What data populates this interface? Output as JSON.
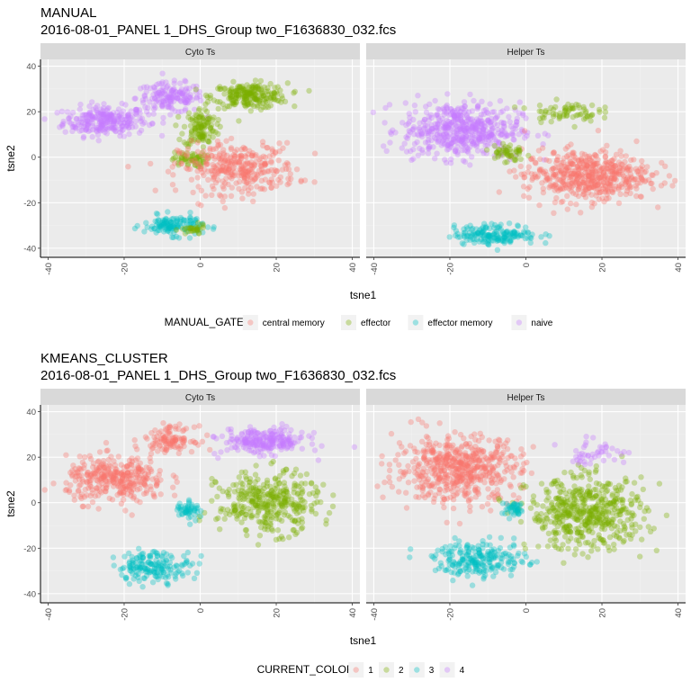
{
  "plots": [
    {
      "title_line1": "MANUAL",
      "title_line2": "2016-08-01_PANEL 1_DHS_Group two_F1636830_032.fcs",
      "legend_title": "MANUAL_GATE",
      "panels": [
        {
          "strip": "Cyto Ts",
          "clusters": [
            {
              "series": "naive",
              "center": [
                -25,
                16
              ],
              "spread": [
                10,
                6
              ],
              "n": 260
            },
            {
              "series": "naive",
              "center": [
                -8,
                26
              ],
              "spread": [
                8,
                6
              ],
              "n": 160
            },
            {
              "series": "effector",
              "center": [
                13,
                27
              ],
              "spread": [
                9,
                5
              ],
              "n": 220
            },
            {
              "series": "effector",
              "center": [
                0,
                13
              ],
              "spread": [
                4,
                8
              ],
              "n": 120
            },
            {
              "series": "effector",
              "center": [
                -3,
                -1
              ],
              "spread": [
                4,
                3
              ],
              "n": 60
            },
            {
              "series": "central memory",
              "center": [
                10,
                -5
              ],
              "spread": [
                14,
                10
              ],
              "n": 330
            },
            {
              "series": "effector memory",
              "center": [
                -7,
                -30
              ],
              "spread": [
                7,
                4
              ],
              "n": 130
            },
            {
              "series": "effector",
              "center": [
                -2,
                -32
              ],
              "spread": [
                3,
                2
              ],
              "n": 30
            }
          ]
        },
        {
          "strip": "Helper Ts",
          "clusters": [
            {
              "series": "naive",
              "center": [
                -17,
                12
              ],
              "spread": [
                14,
                11
              ],
              "n": 520
            },
            {
              "series": "central memory",
              "center": [
                16,
                -8
              ],
              "spread": [
                15,
                10
              ],
              "n": 520
            },
            {
              "series": "effector memory",
              "center": [
                -8,
                -34
              ],
              "spread": [
                10,
                4
              ],
              "n": 170
            },
            {
              "series": "effector",
              "center": [
                10,
                20
              ],
              "spread": [
                8,
                4
              ],
              "n": 70
            },
            {
              "series": "effector",
              "center": [
                -5,
                2
              ],
              "spread": [
                4,
                4
              ],
              "n": 50
            }
          ]
        }
      ],
      "legend": [
        {
          "label": "central memory",
          "color": "#F8766D"
        },
        {
          "label": "effector",
          "color": "#7CAE00"
        },
        {
          "label": "effector memory",
          "color": "#00BFC4"
        },
        {
          "label": "naive",
          "color": "#C77CFF"
        }
      ]
    },
    {
      "title_line1": "KMEANS_CLUSTER",
      "title_line2": "2016-08-01_PANEL 1_DHS_Group two_F1636830_032.fcs",
      "legend_title": "CURRENT_COLOR",
      "panels": [
        {
          "strip": "Cyto Ts",
          "clusters": [
            {
              "series": "1",
              "center": [
                -22,
                10
              ],
              "spread": [
                12,
                9
              ],
              "n": 340
            },
            {
              "series": "1",
              "center": [
                -8,
                28
              ],
              "spread": [
                6,
                5
              ],
              "n": 110
            },
            {
              "series": "4",
              "center": [
                17,
                27
              ],
              "spread": [
                10,
                5
              ],
              "n": 240
            },
            {
              "series": "2",
              "center": [
                18,
                0
              ],
              "spread": [
                12,
                12
              ],
              "n": 360
            },
            {
              "series": "3",
              "center": [
                -12,
                -28
              ],
              "spread": [
                9,
                6
              ],
              "n": 170
            },
            {
              "series": "3",
              "center": [
                -3,
                -3
              ],
              "spread": [
                3,
                4
              ],
              "n": 50
            }
          ]
        },
        {
          "strip": "Helper Ts",
          "clusters": [
            {
              "series": "1",
              "center": [
                -18,
                15
              ],
              "spread": [
                15,
                13
              ],
              "n": 560
            },
            {
              "series": "2",
              "center": [
                16,
                -5
              ],
              "spread": [
                14,
                14
              ],
              "n": 520
            },
            {
              "series": "3",
              "center": [
                -12,
                -25
              ],
              "spread": [
                11,
                7
              ],
              "n": 220
            },
            {
              "series": "3",
              "center": [
                -3,
                -3
              ],
              "spread": [
                3,
                3
              ],
              "n": 40
            },
            {
              "series": "4",
              "center": [
                18,
                22
              ],
              "spread": [
                8,
                5
              ],
              "n": 45
            }
          ]
        }
      ],
      "legend": [
        {
          "label": "1",
          "color": "#F8766D"
        },
        {
          "label": "2",
          "color": "#7CAE00"
        },
        {
          "label": "3",
          "color": "#00BFC4"
        },
        {
          "label": "4",
          "color": "#C77CFF"
        }
      ]
    }
  ],
  "chart_data": [
    {
      "type": "scatter",
      "title": "MANUAL",
      "subtitle": "2016-08-01_PANEL 1_DHS_Group two_F1636830_032.fcs",
      "xlabel": "tsne1",
      "ylabel": "tsne2",
      "xlim": [
        -42,
        42
      ],
      "ylim": [
        -44,
        43
      ],
      "xticks": [
        "-40",
        "-20",
        "0",
        "20",
        "40"
      ],
      "yticks": [
        "-40",
        "-20",
        "0",
        "20",
        "40"
      ],
      "facets": [
        "Cyto Ts",
        "Helper Ts"
      ],
      "legend_position": "bottom",
      "grid": true,
      "series": [
        {
          "name": "central memory",
          "color": "#F8766D"
        },
        {
          "name": "effector",
          "color": "#7CAE00"
        },
        {
          "name": "effector memory",
          "color": "#00BFC4"
        },
        {
          "name": "naive",
          "color": "#C77CFF"
        }
      ]
    },
    {
      "type": "scatter",
      "title": "KMEANS_CLUSTER",
      "subtitle": "2016-08-01_PANEL 1_DHS_Group two_F1636830_032.fcs",
      "xlabel": "tsne1",
      "ylabel": "tsne2",
      "xlim": [
        -42,
        42
      ],
      "ylim": [
        -44,
        43
      ],
      "xticks": [
        "-40",
        "-20",
        "0",
        "20",
        "40"
      ],
      "yticks": [
        "-40",
        "-20",
        "0",
        "20",
        "40"
      ],
      "facets": [
        "Cyto Ts",
        "Helper Ts"
      ],
      "legend_position": "bottom",
      "grid": true,
      "series": [
        {
          "name": "1",
          "color": "#F8766D"
        },
        {
          "name": "2",
          "color": "#7CAE00"
        },
        {
          "name": "3",
          "color": "#00BFC4"
        },
        {
          "name": "4",
          "color": "#C77CFF"
        }
      ]
    }
  ],
  "colors": {
    "panel_bg": "#EBEBEB",
    "strip_bg": "#D9D9D9",
    "grid_major": "#FFFFFF",
    "tick_text": "#4D4D4D"
  }
}
